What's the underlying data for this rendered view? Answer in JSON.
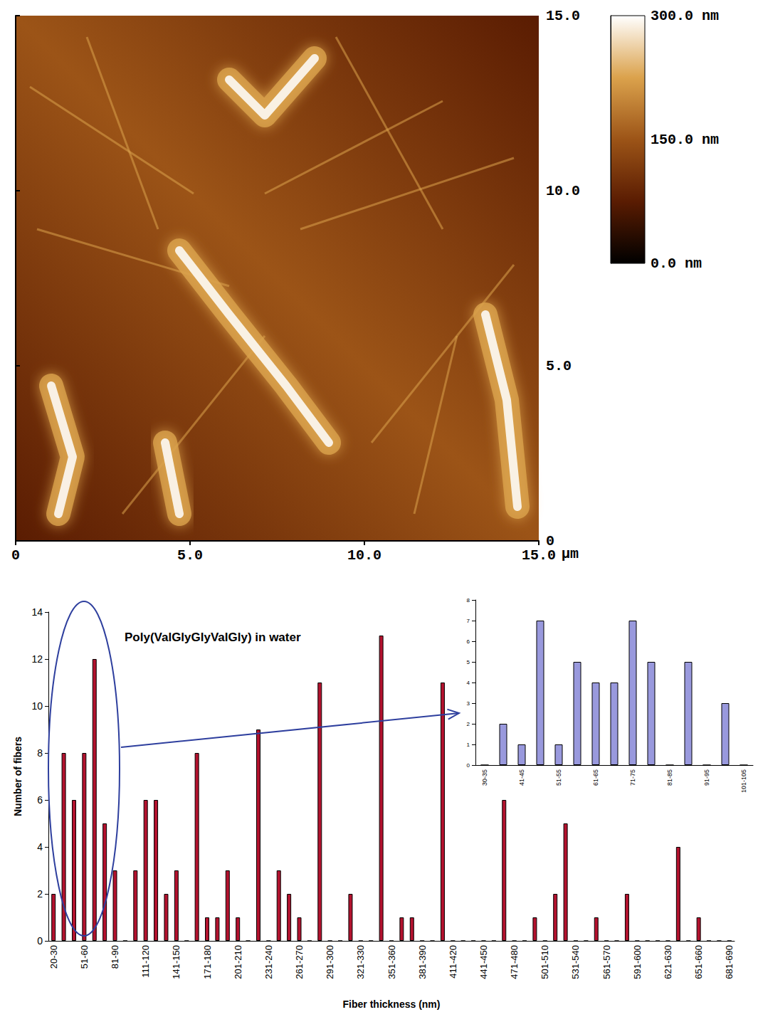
{
  "chart_data": [
    {
      "type": "image",
      "xlabel": "µm",
      "xlim": [
        0,
        15
      ],
      "xticks": [
        0,
        {
          "value": 5,
          "label": "5.0"
        },
        {
          "value": 10,
          "label": "10.0"
        },
        {
          "value": 15,
          "label": "15.0"
        }
      ],
      "ylim": [
        0,
        15
      ],
      "yticks": [
        0,
        {
          "value": 5,
          "label": "5.0"
        },
        {
          "value": 10,
          "label": "10.0"
        },
        {
          "value": 15,
          "label": "15.0"
        }
      ],
      "colorbar": {
        "range": [
          0,
          300
        ],
        "ticks": [
          {
            "value": 0,
            "label": "0.0 nm"
          },
          {
            "value": 150,
            "label": "150.0 nm"
          },
          {
            "value": 300,
            "label": "300.0 nm"
          }
        ]
      },
      "colors": [
        "#000000",
        "#5a1c02",
        "#9c5417",
        "#dba24c",
        "#ffffff"
      ]
    },
    {
      "type": "bar",
      "title": "Poly(ValGlyGlyValGly) in water",
      "xlabel": "Fiber thickness (nm)",
      "ylabel": "Number of fibers",
      "categories": [
        "20-30",
        null,
        null,
        "51-60",
        null,
        null,
        "81-90",
        null,
        null,
        "111-120",
        null,
        null,
        "141-150",
        null,
        null,
        "171-180",
        null,
        null,
        "201-210",
        null,
        null,
        "231-240",
        null,
        null,
        "261-270",
        null,
        null,
        "291-300",
        null,
        null,
        "321-330",
        null,
        null,
        "351-360",
        null,
        null,
        "381-390",
        null,
        null,
        "411-420",
        null,
        null,
        "441-450",
        null,
        null,
        "471-480",
        null,
        null,
        "501-510",
        null,
        null,
        "531-540",
        null,
        null,
        "561-570",
        null,
        null,
        "591-600",
        null,
        null,
        "621-630",
        null,
        null,
        "651-660",
        null,
        null,
        "681-690"
      ],
      "values": [
        2,
        8,
        6,
        8,
        12,
        5,
        3,
        0,
        3,
        6,
        6,
        2,
        3,
        0,
        8,
        1,
        1,
        3,
        1,
        0,
        9,
        0,
        3,
        2,
        1,
        0,
        11,
        0,
        0,
        2,
        0,
        0,
        13,
        0,
        1,
        1,
        0,
        0,
        11,
        0,
        0,
        0,
        0,
        0,
        6,
        0,
        0,
        1,
        0,
        2,
        5,
        0,
        0,
        1,
        0,
        0,
        2,
        0,
        0,
        0,
        0,
        4,
        0,
        1,
        0,
        0,
        0
      ],
      "color": "#b3122e",
      "ylim": [
        0,
        14
      ],
      "yticks": [
        0,
        2,
        4,
        6,
        8,
        10,
        12,
        14
      ],
      "grid": false
    },
    {
      "type": "bar",
      "categories": [
        "30-35",
        null,
        "41-45",
        null,
        "51-55",
        null,
        "61-65",
        null,
        "71-75",
        null,
        "81-85",
        null,
        "91-95",
        null,
        "101-105"
      ],
      "values": [
        0,
        2,
        1,
        7,
        1,
        5,
        4,
        4,
        7,
        5,
        0,
        5,
        0,
        3,
        0
      ],
      "color": "#9999dd",
      "ylim": [
        0,
        8
      ],
      "yticks": [
        0,
        1,
        2,
        3,
        4,
        5,
        6,
        7,
        8
      ],
      "grid": false
    }
  ]
}
